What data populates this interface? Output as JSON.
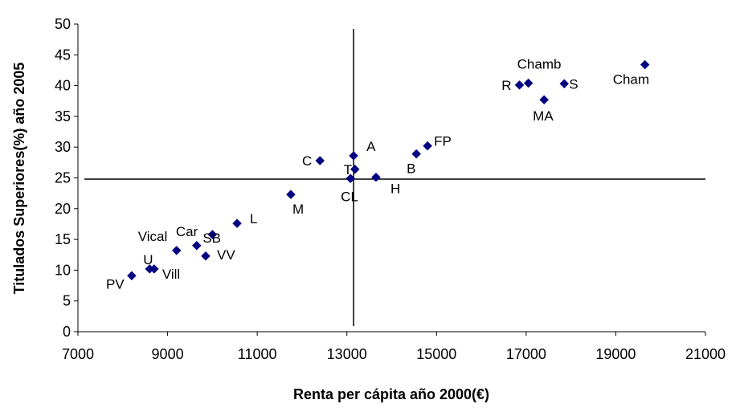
{
  "chart_data": {
    "type": "scatter",
    "xlabel": "Renta per cápita año 2000(€)",
    "ylabel": "Titulados Superiores(%) año 2005",
    "xlim": [
      7000,
      21000
    ],
    "ylim": [
      0,
      50
    ],
    "xticks": [
      "7000",
      "9000",
      "11000",
      "13000",
      "15000",
      "17000",
      "19000",
      "21000"
    ],
    "yticks": [
      "0",
      "5",
      "10",
      "15",
      "20",
      "25",
      "30",
      "35",
      "40",
      "45",
      "50"
    ],
    "reference_lines": {
      "x": 13150,
      "y": 24.8
    },
    "marker_color": "#000080",
    "points": [
      {
        "label": "Cham",
        "x": 19650,
        "y": 43.4
      },
      {
        "label": "S",
        "x": 17850,
        "y": 40.3
      },
      {
        "label": "Chamb",
        "x": 17050,
        "y": 40.4
      },
      {
        "label": "R",
        "x": 16850,
        "y": 40.1
      },
      {
        "label": "MA",
        "x": 17400,
        "y": 37.7
      },
      {
        "label": "FP",
        "x": 14800,
        "y": 30.2
      },
      {
        "label": "B",
        "x": 14550,
        "y": 28.9
      },
      {
        "label": "A",
        "x": 13150,
        "y": 28.6
      },
      {
        "label": "C",
        "x": 12400,
        "y": 27.8
      },
      {
        "label": "T",
        "x": 13180,
        "y": 26.4
      },
      {
        "label": "H",
        "x": 13650,
        "y": 25.1
      },
      {
        "label": "CL",
        "x": 13080,
        "y": 24.9
      },
      {
        "label": "M",
        "x": 11750,
        "y": 22.3
      },
      {
        "label": "L",
        "x": 10550,
        "y": 17.6
      },
      {
        "label": "SB",
        "x": 10000,
        "y": 15.8
      },
      {
        "label": "Car",
        "x": 9650,
        "y": 14.0
      },
      {
        "label": "VV",
        "x": 9850,
        "y": 12.3
      },
      {
        "label": "Vical",
        "x": 9200,
        "y": 13.2
      },
      {
        "label": "U",
        "x": 8600,
        "y": 10.2
      },
      {
        "label": "Vill",
        "x": 8700,
        "y": 10.2
      },
      {
        "label": "PV",
        "x": 8200,
        "y": 9.1
      }
    ]
  }
}
